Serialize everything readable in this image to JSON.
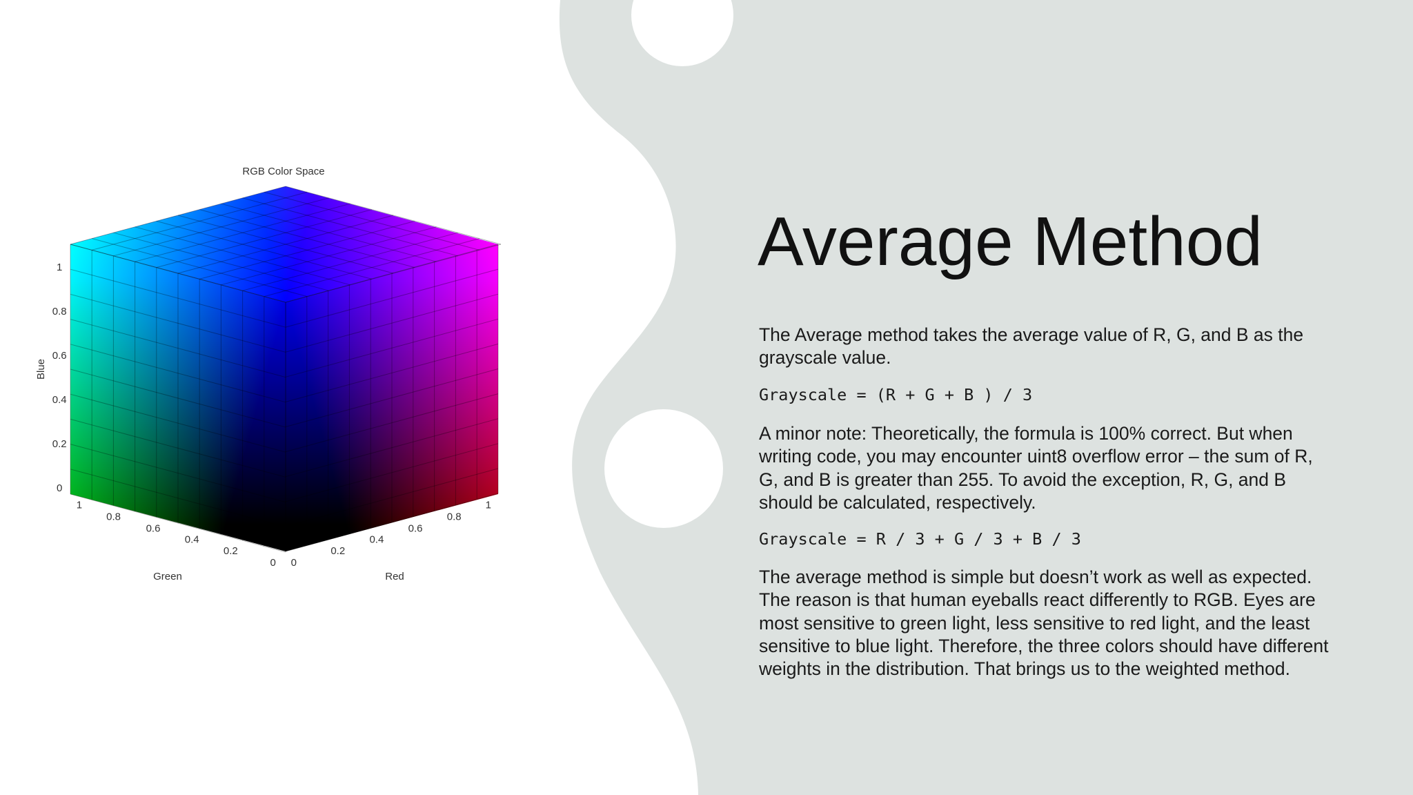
{
  "figure": {
    "title": "RGB Color Space",
    "axes": {
      "blue": {
        "label": "Blue",
        "ticks": [
          "0",
          "0.2",
          "0.4",
          "0.6",
          "0.8",
          "1"
        ]
      },
      "green": {
        "label": "Green",
        "ticks": [
          "1",
          "0.8",
          "0.6",
          "0.4",
          "0.2",
          "0"
        ]
      },
      "red": {
        "label": "Red",
        "ticks": [
          "0",
          "0.2",
          "0.4",
          "0.6",
          "0.8",
          "1"
        ]
      }
    }
  },
  "slide": {
    "title": "Average Method",
    "body": [
      "The Average method takes the average value of R, G, and B as the grayscale value.",
      "Grayscale = (R + G + B ) / 3",
      "A minor note: Theoretically, the formula is 100% correct. But when writing code, you may encounter uint8 overflow error – the sum of R, G, and B is greater than 255. To avoid the exception, R, G, and B should be calculated, respectively.",
      "Grayscale = R / 3 + G / 3 + B / 3",
      "The average method is simple but doesn’t work as well as expected. The reason is that human eyeballs react differently to RGB. Eyes are most sensitive to green light, less sensitive to red light, and the least sensitive to blue light. Therefore, the three colors should have different weights in the distribution. That brings us to the weighted method."
    ]
  }
}
